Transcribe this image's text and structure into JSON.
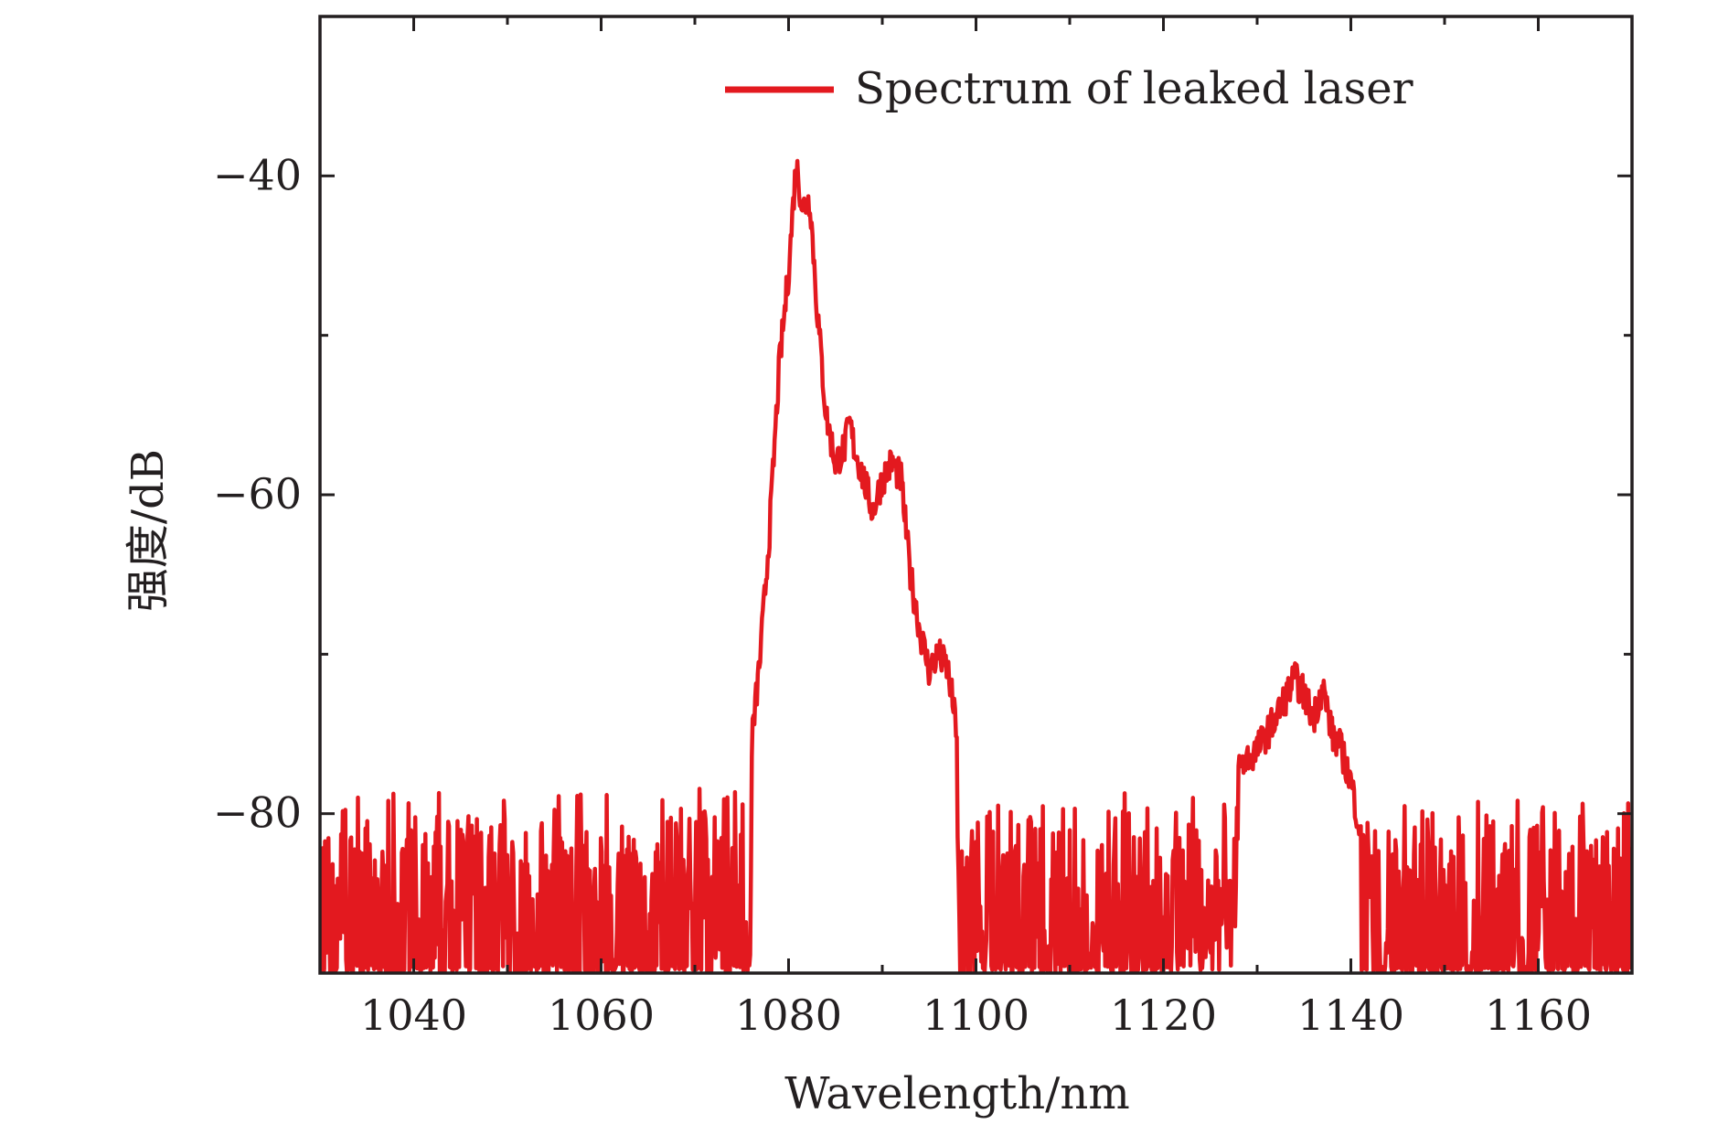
{
  "chart_data": {
    "type": "line",
    "xlabel": "Wavelength/nm",
    "ylabel": "强度/dB",
    "xlim": [
      1030,
      1170
    ],
    "ylim": [
      -90,
      -30
    ],
    "xticks": [
      1040,
      1060,
      1080,
      1100,
      1120,
      1140,
      1160
    ],
    "xtick_labels": [
      "1040",
      "1060",
      "1080",
      "1100",
      "1120",
      "1140",
      "1160"
    ],
    "yticks": [
      -40,
      -60,
      -80
    ],
    "ytick_labels": [
      "−40",
      "−60",
      "−80"
    ],
    "legend_position": "top-right",
    "grid": false,
    "series": [
      {
        "name": "Spectrum of leaked laser",
        "color": "#e3191f",
        "peaks": [
          [
            1030,
            -90
          ],
          [
            1072,
            -86
          ],
          [
            1074,
            -83
          ],
          [
            1075,
            -79
          ],
          [
            1076,
            -76
          ],
          [
            1077,
            -70
          ],
          [
            1078,
            -62
          ],
          [
            1079,
            -52
          ],
          [
            1080,
            -46
          ],
          [
            1080.8,
            -39.2
          ],
          [
            1081.5,
            -42
          ],
          [
            1082.3,
            -41.5
          ],
          [
            1083,
            -48
          ],
          [
            1084,
            -55
          ],
          [
            1085,
            -58
          ],
          [
            1086,
            -57
          ],
          [
            1086.5,
            -55.5
          ],
          [
            1087,
            -57
          ],
          [
            1088,
            -59
          ],
          [
            1089,
            -61
          ],
          [
            1090,
            -59
          ],
          [
            1091,
            -58
          ],
          [
            1092,
            -59
          ],
          [
            1093,
            -65
          ],
          [
            1094,
            -68.5
          ],
          [
            1095,
            -71
          ],
          [
            1096,
            -70
          ],
          [
            1097,
            -71
          ],
          [
            1098,
            -75
          ],
          [
            1099,
            -80
          ],
          [
            1100,
            -82
          ],
          [
            1104,
            -83
          ],
          [
            1110,
            -82
          ],
          [
            1115,
            -80
          ],
          [
            1120,
            -80
          ],
          [
            1125,
            -79
          ],
          [
            1128,
            -77
          ],
          [
            1130,
            -76
          ],
          [
            1132,
            -74
          ],
          [
            1134,
            -71.5
          ],
          [
            1135,
            -72.5
          ],
          [
            1136,
            -74
          ],
          [
            1137,
            -72
          ],
          [
            1138,
            -75
          ],
          [
            1139,
            -76
          ],
          [
            1140,
            -78
          ],
          [
            1141,
            -81
          ],
          [
            1142,
            -85
          ],
          [
            1145,
            -86
          ],
          [
            1150,
            -85
          ],
          [
            1160,
            -85
          ],
          [
            1170,
            -85
          ]
        ],
        "floor": -90
      }
    ]
  }
}
